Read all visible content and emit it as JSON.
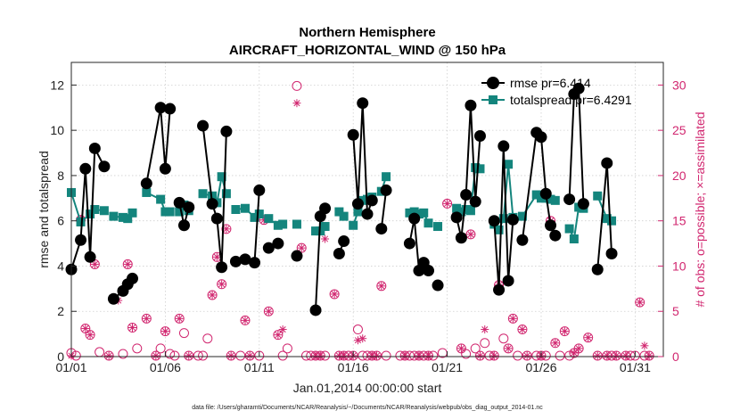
{
  "colors": {
    "rmse": "#000000",
    "spread": "#14857d",
    "obs": "#d1266f",
    "grid": "#cfcfcf",
    "axis": "#262626"
  },
  "chart_data": {
    "type": "line",
    "title": [
      "Northern Hemisphere",
      "AIRCRAFT_HORIZONTAL_WIND @ 150 hPa"
    ],
    "xlabel": "Jan.01,2014 00:00:00 start",
    "ylabel": "rmse and totalspread",
    "y2label": "# of obs: o=possible; ×=assimilated",
    "footnote": "data file: /Users/gharamti/Documents/NCAR/Reanalysis/~/Documents/NCAR/Reanalysis/webpub/obs_diag_output_2014-01.nc",
    "xlim": [
      0,
      31.5
    ],
    "ylim": [
      0,
      13
    ],
    "y2lim": [
      0,
      32.5
    ],
    "grid": true,
    "legend_position": "top-right",
    "x_ticks": [
      {
        "v": 0,
        "label": "01/01"
      },
      {
        "v": 5,
        "label": "01/06"
      },
      {
        "v": 10,
        "label": "01/11"
      },
      {
        "v": 15,
        "label": "01/16"
      },
      {
        "v": 20,
        "label": "01/21"
      },
      {
        "v": 25,
        "label": "01/26"
      },
      {
        "v": 30,
        "label": "01/31"
      }
    ],
    "y_ticks": [
      0,
      2,
      4,
      6,
      8,
      10,
      12
    ],
    "y2_ticks": [
      0,
      5,
      10,
      15,
      20,
      25,
      30
    ],
    "series": [
      {
        "name": "rmse",
        "legend": "rmse pr=6.414",
        "points": [
          [
            0.0,
            3.85
          ],
          [
            0.5,
            5.15
          ],
          [
            0.75,
            8.3
          ],
          [
            1.0,
            4.4
          ],
          [
            1.25,
            9.2
          ],
          [
            1.75,
            8.4
          ],
          [
            null,
            null
          ],
          [
            2.25,
            2.55
          ],
          [
            2.75,
            2.9
          ],
          [
            3.0,
            3.2
          ],
          [
            3.25,
            3.45
          ],
          [
            null,
            null
          ],
          [
            4.0,
            7.65
          ],
          [
            4.75,
            11.0
          ],
          [
            5.0,
            8.3
          ],
          [
            5.25,
            10.95
          ],
          [
            null,
            null
          ],
          [
            5.75,
            6.8
          ],
          [
            6.0,
            5.8
          ],
          [
            6.25,
            6.6
          ],
          [
            null,
            null
          ],
          [
            7.0,
            10.2
          ],
          [
            7.5,
            6.75
          ],
          [
            7.75,
            6.1
          ],
          [
            8.0,
            3.95
          ],
          [
            8.25,
            9.95
          ],
          [
            null,
            null
          ],
          [
            8.75,
            4.2
          ],
          [
            9.25,
            4.3
          ],
          [
            9.75,
            4.15
          ],
          [
            10.0,
            7.35
          ],
          [
            null,
            null
          ],
          [
            10.5,
            4.8
          ],
          [
            11.0,
            5.0
          ],
          [
            null,
            null
          ],
          [
            12.0,
            4.45
          ],
          [
            null,
            null
          ],
          [
            13.0,
            2.05
          ],
          [
            13.25,
            6.2
          ],
          [
            13.5,
            6.55
          ],
          [
            null,
            null
          ],
          [
            14.25,
            4.55
          ],
          [
            14.5,
            5.1
          ],
          [
            null,
            null
          ],
          [
            15.0,
            9.8
          ],
          [
            15.25,
            6.75
          ],
          [
            15.5,
            11.2
          ],
          [
            15.75,
            6.3
          ],
          [
            16.0,
            6.9
          ],
          [
            null,
            null
          ],
          [
            16.5,
            5.65
          ],
          [
            16.75,
            7.35
          ],
          [
            null,
            null
          ],
          [
            18.0,
            5.0
          ],
          [
            18.25,
            6.1
          ],
          [
            18.5,
            3.8
          ],
          [
            18.75,
            4.15
          ],
          [
            19.0,
            3.8
          ],
          [
            null,
            null
          ],
          [
            19.5,
            3.15
          ],
          [
            null,
            null
          ],
          [
            20.5,
            6.15
          ],
          [
            20.75,
            5.25
          ],
          [
            21.0,
            7.15
          ],
          [
            21.25,
            11.1
          ],
          [
            21.5,
            6.85
          ],
          [
            21.75,
            9.75
          ],
          [
            null,
            null
          ],
          [
            22.5,
            6.0
          ],
          [
            22.75,
            2.95
          ],
          [
            23.0,
            9.3
          ],
          [
            23.25,
            3.35
          ],
          [
            23.5,
            6.05
          ],
          [
            null,
            null
          ],
          [
            24.0,
            5.15
          ],
          [
            24.75,
            9.9
          ],
          [
            25.0,
            9.7
          ],
          [
            25.25,
            7.2
          ],
          [
            25.5,
            5.8
          ],
          [
            25.75,
            5.35
          ],
          [
            null,
            null
          ],
          [
            26.5,
            6.95
          ],
          [
            26.75,
            11.6
          ],
          [
            27.0,
            11.85
          ],
          [
            27.25,
            6.75
          ],
          [
            null,
            null
          ],
          [
            28.0,
            3.85
          ],
          [
            28.5,
            8.55
          ],
          [
            28.75,
            4.55
          ]
        ]
      },
      {
        "name": "totalspread",
        "legend": "totalspread pr=6.4291",
        "points": [
          [
            0.0,
            7.25
          ],
          [
            0.5,
            5.95
          ],
          [
            1.0,
            6.3
          ],
          [
            1.25,
            6.5
          ],
          [
            1.75,
            6.45
          ],
          [
            null,
            null
          ],
          [
            2.25,
            6.2
          ],
          [
            2.75,
            6.15
          ],
          [
            3.0,
            6.1
          ],
          [
            3.25,
            6.35
          ],
          [
            null,
            null
          ],
          [
            4.0,
            7.25
          ],
          [
            4.75,
            6.95
          ],
          [
            5.0,
            6.4
          ],
          [
            5.25,
            6.4
          ],
          [
            null,
            null
          ],
          [
            5.75,
            6.4
          ],
          [
            6.0,
            6.7
          ],
          [
            6.25,
            6.45
          ],
          [
            null,
            null
          ],
          [
            7.0,
            7.2
          ],
          [
            7.5,
            7.1
          ],
          [
            7.75,
            6.8
          ],
          [
            8.0,
            7.95
          ],
          [
            8.25,
            7.2
          ],
          [
            null,
            null
          ],
          [
            8.75,
            6.5
          ],
          [
            9.25,
            6.55
          ],
          [
            9.75,
            6.15
          ],
          [
            10.0,
            6.3
          ],
          [
            null,
            null
          ],
          [
            10.5,
            6.1
          ],
          [
            11.0,
            5.8
          ],
          [
            11.25,
            5.85
          ],
          [
            null,
            null
          ],
          [
            12.0,
            5.85
          ],
          [
            null,
            null
          ],
          [
            13.0,
            5.55
          ],
          [
            13.25,
            5.55
          ],
          [
            13.5,
            5.75
          ],
          [
            null,
            null
          ],
          [
            14.25,
            6.4
          ],
          [
            14.5,
            6.2
          ],
          [
            null,
            null
          ],
          [
            15.0,
            5.8
          ],
          [
            15.25,
            6.4
          ],
          [
            15.5,
            6.9
          ],
          [
            15.75,
            6.95
          ],
          [
            16.0,
            7.05
          ],
          [
            null,
            null
          ],
          [
            16.5,
            7.3
          ],
          [
            16.75,
            7.95
          ],
          [
            null,
            null
          ],
          [
            18.0,
            6.35
          ],
          [
            18.25,
            6.4
          ],
          [
            18.5,
            6.3
          ],
          [
            18.75,
            6.35
          ],
          [
            19.0,
            5.9
          ],
          [
            null,
            null
          ],
          [
            19.5,
            5.75
          ],
          [
            null,
            null
          ],
          [
            20.5,
            6.55
          ],
          [
            20.75,
            6.4
          ],
          [
            21.0,
            6.5
          ],
          [
            21.25,
            6.45
          ],
          [
            21.5,
            8.35
          ],
          [
            21.75,
            8.3
          ],
          [
            null,
            null
          ],
          [
            22.5,
            5.85
          ],
          [
            22.75,
            5.6
          ],
          [
            23.0,
            6.1
          ],
          [
            23.25,
            8.5
          ],
          [
            23.5,
            6.15
          ],
          [
            null,
            null
          ],
          [
            24.0,
            6.2
          ],
          [
            24.75,
            7.15
          ],
          [
            25.0,
            7.0
          ],
          [
            25.25,
            7.0
          ],
          [
            25.5,
            6.95
          ],
          [
            25.75,
            6.9
          ],
          [
            null,
            null
          ],
          [
            26.5,
            5.65
          ],
          [
            26.75,
            5.2
          ],
          [
            27.0,
            6.6
          ],
          [
            27.25,
            6.55
          ],
          [
            null,
            null
          ],
          [
            28.0,
            7.1
          ],
          [
            28.5,
            6.1
          ],
          [
            28.75,
            6.0
          ]
        ]
      }
    ],
    "obs_possible": [
      [
        0,
        0.4
      ],
      [
        0.25,
        0.1
      ],
      [
        0.5,
        15.1
      ],
      [
        0.75,
        3.1
      ],
      [
        1.0,
        2.4
      ],
      [
        1.25,
        10.2
      ],
      [
        1.5,
        0.5
      ],
      [
        2.0,
        0.1
      ],
      [
        2.75,
        0.3
      ],
      [
        3.0,
        10.2
      ],
      [
        3.25,
        3.2
      ],
      [
        3.5,
        0.9
      ],
      [
        4.0,
        4.2
      ],
      [
        4.5,
        0.1
      ],
      [
        4.75,
        0.9
      ],
      [
        5.0,
        2.8
      ],
      [
        5.25,
        0.3
      ],
      [
        5.5,
        0.1
      ],
      [
        5.75,
        4.2
      ],
      [
        6.0,
        2.6
      ],
      [
        6.25,
        0.1
      ],
      [
        6.75,
        0.1
      ],
      [
        7.0,
        0.1
      ],
      [
        7.25,
        2.0
      ],
      [
        7.5,
        6.8
      ],
      [
        7.75,
        11.0
      ],
      [
        8.0,
        8.0
      ],
      [
        8.25,
        14.1
      ],
      [
        8.5,
        0.1
      ],
      [
        9.0,
        0.1
      ],
      [
        9.25,
        4.0
      ],
      [
        9.5,
        0.1
      ],
      [
        10.0,
        0.1
      ],
      [
        10.25,
        15.1
      ],
      [
        10.5,
        5.0
      ],
      [
        11.0,
        2.4
      ],
      [
        11.25,
        0.1
      ],
      [
        11.5,
        0.9
      ],
      [
        12.0,
        29.9
      ],
      [
        12.25,
        12.0
      ],
      [
        12.5,
        0.1
      ],
      [
        12.75,
        0.1
      ],
      [
        13.0,
        0.1
      ],
      [
        13.25,
        0.1
      ],
      [
        13.5,
        0.1
      ],
      [
        14.0,
        6.9
      ],
      [
        14.25,
        0.1
      ],
      [
        14.5,
        0.1
      ],
      [
        14.75,
        0.1
      ],
      [
        15.0,
        0.1
      ],
      [
        15.25,
        3.0
      ],
      [
        15.5,
        0.1
      ],
      [
        15.75,
        0.1
      ],
      [
        16.0,
        0.1
      ],
      [
        16.25,
        0.1
      ],
      [
        16.5,
        7.8
      ],
      [
        16.75,
        0.1
      ],
      [
        17.5,
        0.1
      ],
      [
        17.75,
        0.1
      ],
      [
        18.0,
        0.1
      ],
      [
        18.25,
        0.1
      ],
      [
        18.5,
        0.1
      ],
      [
        18.75,
        0.1
      ],
      [
        19.0,
        0.1
      ],
      [
        19.25,
        0.1
      ],
      [
        19.75,
        0.4
      ],
      [
        20.0,
        16.9
      ],
      [
        20.5,
        15.6
      ],
      [
        20.75,
        0.9
      ],
      [
        21.0,
        0.3
      ],
      [
        21.25,
        13.5
      ],
      [
        21.5,
        0.9
      ],
      [
        21.75,
        0.1
      ],
      [
        22.0,
        1.5
      ],
      [
        22.25,
        0.1
      ],
      [
        22.5,
        0.1
      ],
      [
        22.75,
        7.9
      ],
      [
        23.0,
        2.0
      ],
      [
        23.25,
        0.9
      ],
      [
        23.5,
        4.2
      ],
      [
        23.75,
        0.1
      ],
      [
        24.0,
        3.0
      ],
      [
        24.25,
        0.1
      ],
      [
        24.75,
        0.1
      ],
      [
        25.0,
        0.1
      ],
      [
        25.25,
        0.1
      ],
      [
        25.5,
        15.0
      ],
      [
        25.75,
        1.5
      ],
      [
        26.0,
        0.1
      ],
      [
        26.25,
        2.8
      ],
      [
        26.5,
        0.1
      ],
      [
        26.75,
        0.4
      ],
      [
        27.0,
        0.9
      ],
      [
        27.5,
        2.1
      ],
      [
        28.0,
        0.1
      ],
      [
        28.5,
        0.1
      ],
      [
        28.75,
        0.1
      ],
      [
        29.0,
        0.1
      ],
      [
        29.5,
        0.1
      ],
      [
        29.75,
        0.1
      ],
      [
        30.0,
        0.1
      ],
      [
        30.25,
        6.0
      ],
      [
        30.5,
        0.1
      ],
      [
        30.75,
        0.1
      ]
    ],
    "obs_assimilated": [
      [
        0,
        0.1
      ],
      [
        0.5,
        15.1
      ],
      [
        0.75,
        3.1
      ],
      [
        1.0,
        2.4
      ],
      [
        1.25,
        10.2
      ],
      [
        2.0,
        0.1
      ],
      [
        2.5,
        6.2
      ],
      [
        3.0,
        10.2
      ],
      [
        3.25,
        3.2
      ],
      [
        4.0,
        4.2
      ],
      [
        4.5,
        0.1
      ],
      [
        5.0,
        2.8
      ],
      [
        5.75,
        4.2
      ],
      [
        6.25,
        0.1
      ],
      [
        7.5,
        6.8
      ],
      [
        7.75,
        11.0
      ],
      [
        8.0,
        8.0
      ],
      [
        8.25,
        14.1
      ],
      [
        8.5,
        0.1
      ],
      [
        9.25,
        4.0
      ],
      [
        9.5,
        0.1
      ],
      [
        10.25,
        15.1
      ],
      [
        10.5,
        5.0
      ],
      [
        11.0,
        2.4
      ],
      [
        11.25,
        3.0
      ],
      [
        12.0,
        28.0
      ],
      [
        12.25,
        12.0
      ],
      [
        13.0,
        0.1
      ],
      [
        13.25,
        0.1
      ],
      [
        13.5,
        13.0
      ],
      [
        14.0,
        6.9
      ],
      [
        14.25,
        0.1
      ],
      [
        14.5,
        0.1
      ],
      [
        15.0,
        0.1
      ],
      [
        15.25,
        1.8
      ],
      [
        15.5,
        2.0
      ],
      [
        16.0,
        0.1
      ],
      [
        16.25,
        0.1
      ],
      [
        16.5,
        7.8
      ],
      [
        17.75,
        0.1
      ],
      [
        18.5,
        0.1
      ],
      [
        19.0,
        0.1
      ],
      [
        20.0,
        16.9
      ],
      [
        20.5,
        15.6
      ],
      [
        20.75,
        0.9
      ],
      [
        21.25,
        13.5
      ],
      [
        21.75,
        0.1
      ],
      [
        22.0,
        3.0
      ],
      [
        22.5,
        0.1
      ],
      [
        22.75,
        7.9
      ],
      [
        23.25,
        0.9
      ],
      [
        23.5,
        4.2
      ],
      [
        24.0,
        3.0
      ],
      [
        24.25,
        0.1
      ],
      [
        25.0,
        0.1
      ],
      [
        25.5,
        15.0
      ],
      [
        25.75,
        1.5
      ],
      [
        26.25,
        2.8
      ],
      [
        26.75,
        0.4
      ],
      [
        27.0,
        0.9
      ],
      [
        27.5,
        2.1
      ],
      [
        28.0,
        0.1
      ],
      [
        28.5,
        0.1
      ],
      [
        29.0,
        0.1
      ],
      [
        29.5,
        0.1
      ],
      [
        30.25,
        6.0
      ],
      [
        30.5,
        1.2
      ],
      [
        30.75,
        0.1
      ]
    ]
  }
}
